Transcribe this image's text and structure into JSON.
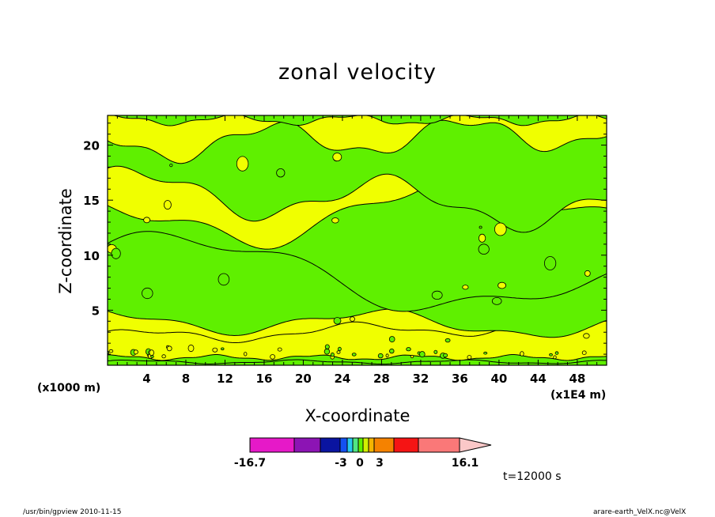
{
  "chart_data": {
    "type": "heatmap",
    "title": "zonal velocity",
    "xlabel": "X-coordinate",
    "ylabel": "Z-coordinate",
    "x_unit": "(x1E4 m)",
    "y_unit": "(x1000 m)",
    "xlim": [
      0,
      51
    ],
    "ylim": [
      0,
      22.7
    ],
    "x_ticks": [
      4,
      8,
      12,
      16,
      20,
      24,
      28,
      32,
      36,
      40,
      44,
      48
    ],
    "y_ticks": [
      5,
      10,
      15,
      20
    ],
    "grid": false,
    "colorbar": {
      "min_label": "-16.7",
      "max_label": "16.1",
      "labels": [
        "-16.7",
        "-3",
        "0",
        "3",
        "16.1"
      ],
      "colors": [
        "#e619c8",
        "#8c14b4",
        "#0a14a0",
        "#1450f0",
        "#28c8f0",
        "#50e682",
        "#5ff000",
        "#d2f000",
        "#f5b400",
        "#f58200",
        "#f51414",
        "#fa7878",
        "#fac8c8"
      ]
    },
    "field_colors": {
      "negative": "#5ff000",
      "positive": "#f0ff00",
      "contour": "#000000"
    },
    "regions": [
      {
        "sign": "negative",
        "z": 0.3
      },
      {
        "sign": "positive",
        "z": 0.7
      },
      {
        "sign": "positive",
        "z": 2.5
      },
      {
        "sign": "negative",
        "z": 4.2
      },
      {
        "sign": "negative",
        "z": 10.0
      },
      {
        "sign": "positive",
        "z": 12.5
      },
      {
        "sign": "negative",
        "z": 16.0
      },
      {
        "sign": "positive",
        "z": 20.0
      },
      {
        "sign": "negative",
        "z": 22.3
      }
    ]
  },
  "time_label": "t=12000 s",
  "footer": {
    "left": "/usr/bin/gpview   2010-11-15",
    "right": "arare-earth_VelX.nc@VelX"
  }
}
